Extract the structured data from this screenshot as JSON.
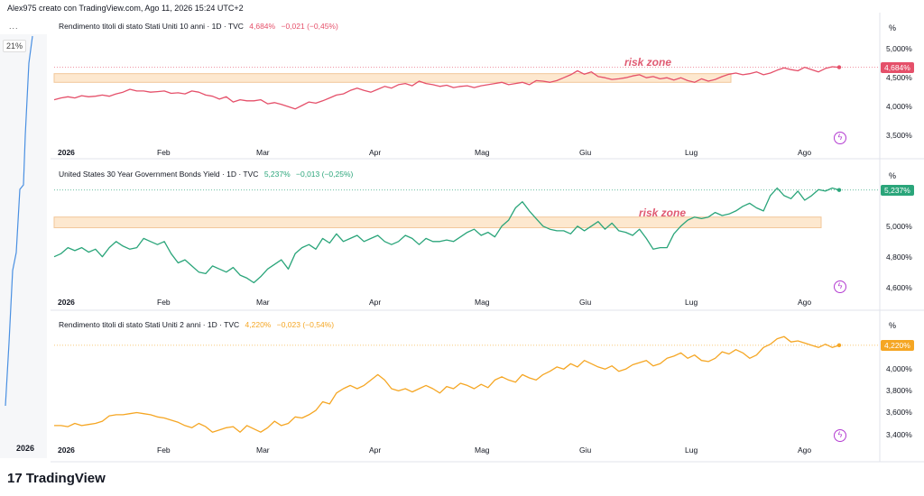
{
  "header": "Alex975 creato con TradingView.com, Ago 11, 2026 15:24 UTC+2",
  "left_strip": {
    "badge": "21%",
    "year": "2026",
    "dots": "..."
  },
  "brand": {
    "logo": "17",
    "name": "TradingView"
  },
  "colors": {
    "p1": "#e5506a",
    "p2": "#2aa57a",
    "p3": "#f5a623",
    "zone": "#fde8cf",
    "zone_border": "#f2c79a",
    "bolt": "#b33bd1"
  },
  "chart_data": [
    {
      "type": "line",
      "title": "Rendimento titoli di stato Stati Uniti 10 anni · 1D · TVC",
      "last": "4,684%",
      "change": "−0,021 (−0,45%)",
      "unit": "%",
      "ytick_labels": [
        "5,000%",
        "4,500%",
        "4,000%",
        "3,500%"
      ],
      "ytick_values": [
        5.0,
        4.5,
        4.0,
        3.5
      ],
      "ylim": [
        3.35,
        5.25
      ],
      "x_tick_labels": [
        "2026",
        "Feb",
        "Mar",
        "Apr",
        "Mag",
        "Giu",
        "Lug",
        "Ago"
      ],
      "annotation": {
        "text": "risk zone",
        "y_range": [
          4.42,
          4.57
        ]
      },
      "x": [
        0,
        2,
        4,
        6,
        8,
        10,
        12,
        14,
        16,
        18,
        20,
        22,
        24,
        26,
        28,
        30,
        32,
        34,
        36,
        38,
        40,
        42,
        44,
        46,
        48,
        50,
        52,
        54,
        56,
        58,
        60,
        62,
        64,
        66,
        68,
        70,
        72,
        74,
        76,
        78,
        80,
        82,
        84,
        86,
        88,
        90,
        92,
        94,
        96,
        98,
        100,
        102,
        104,
        106,
        108,
        110,
        112,
        114,
        116,
        118,
        120,
        122,
        124,
        126,
        128,
        130,
        132,
        134,
        136,
        138,
        140,
        142,
        144,
        146,
        148,
        150,
        152,
        154,
        156,
        158,
        160,
        162,
        164,
        166,
        168,
        170,
        172,
        174,
        176,
        178,
        180,
        182,
        184,
        186,
        188,
        190,
        192,
        194,
        196,
        198,
        200,
        202,
        204,
        206,
        208,
        210,
        212,
        214,
        216,
        218,
        220,
        222,
        224,
        226,
        228
      ],
      "values": [
        4.12,
        4.15,
        4.17,
        4.15,
        4.19,
        4.17,
        4.18,
        4.2,
        4.18,
        4.22,
        4.25,
        4.3,
        4.27,
        4.27,
        4.25,
        4.26,
        4.27,
        4.23,
        4.24,
        4.22,
        4.27,
        4.25,
        4.2,
        4.18,
        4.13,
        4.17,
        4.08,
        4.12,
        4.1,
        4.1,
        4.12,
        4.05,
        4.07,
        4.04,
        4.0,
        3.96,
        4.02,
        4.08,
        4.06,
        4.1,
        4.15,
        4.2,
        4.22,
        4.28,
        4.32,
        4.28,
        4.25,
        4.3,
        4.35,
        4.32,
        4.38,
        4.4,
        4.36,
        4.44,
        4.4,
        4.38,
        4.35,
        4.37,
        4.33,
        4.35,
        4.36,
        4.33,
        4.36,
        4.38,
        4.4,
        4.42,
        4.38,
        4.4,
        4.42,
        4.38,
        4.45,
        4.44,
        4.42,
        4.45,
        4.5,
        4.55,
        4.62,
        4.56,
        4.6,
        4.52,
        4.5,
        4.47,
        4.48,
        4.5,
        4.53,
        4.55,
        4.5,
        4.52,
        4.48,
        4.5,
        4.46,
        4.5,
        4.45,
        4.42,
        4.48,
        4.44,
        4.47,
        4.52,
        4.56,
        4.58,
        4.55,
        4.57,
        4.6,
        4.55,
        4.58,
        4.63,
        4.67,
        4.64,
        4.62,
        4.68,
        4.64,
        4.6,
        4.66,
        4.69,
        4.68
      ]
    },
    {
      "type": "line",
      "title": "United States 30 Year Government Bonds Yield · 1D · TVC",
      "last": "5,237%",
      "change": "−0,013 (−0,25%)",
      "unit": "%",
      "ytick_labels": [
        "5,000%",
        "4,800%",
        "4,600%"
      ],
      "ytick_values": [
        5.0,
        4.8,
        4.6
      ],
      "ylim": [
        4.58,
        5.3
      ],
      "x_tick_labels": [
        "2026",
        "Feb",
        "Mar",
        "Apr",
        "Mag",
        "Giu",
        "Lug",
        "Ago"
      ],
      "annotation": {
        "text": "risk zone",
        "y_range": [
          4.99,
          5.06
        ]
      },
      "x": [
        0,
        2,
        4,
        6,
        8,
        10,
        12,
        14,
        16,
        18,
        20,
        22,
        24,
        26,
        28,
        30,
        32,
        34,
        36,
        38,
        40,
        42,
        44,
        46,
        48,
        50,
        52,
        54,
        56,
        58,
        60,
        62,
        64,
        66,
        68,
        70,
        72,
        74,
        76,
        78,
        80,
        82,
        84,
        86,
        88,
        90,
        92,
        94,
        96,
        98,
        100,
        102,
        104,
        106,
        108,
        110,
        112,
        114,
        116,
        118,
        120,
        122,
        124,
        126,
        128,
        130,
        132,
        134,
        136,
        138,
        140,
        142,
        144,
        146,
        148,
        150,
        152,
        154,
        156,
        158,
        160,
        162,
        164,
        166,
        168,
        170,
        172,
        174,
        176,
        178,
        180,
        182,
        184,
        186,
        188,
        190,
        192,
        194,
        196,
        198,
        200,
        202,
        204,
        206,
        208,
        210,
        212,
        214,
        216,
        218,
        220,
        222,
        224,
        226,
        228
      ],
      "values": [
        4.8,
        4.82,
        4.86,
        4.84,
        4.86,
        4.83,
        4.85,
        4.8,
        4.86,
        4.9,
        4.87,
        4.85,
        4.86,
        4.92,
        4.9,
        4.88,
        4.9,
        4.82,
        4.76,
        4.78,
        4.74,
        4.7,
        4.69,
        4.74,
        4.72,
        4.7,
        4.73,
        4.68,
        4.66,
        4.63,
        4.67,
        4.72,
        4.75,
        4.78,
        4.72,
        4.82,
        4.86,
        4.88,
        4.85,
        4.92,
        4.89,
        4.95,
        4.9,
        4.92,
        4.94,
        4.9,
        4.92,
        4.94,
        4.9,
        4.88,
        4.9,
        4.94,
        4.92,
        4.88,
        4.92,
        4.9,
        4.9,
        4.91,
        4.9,
        4.93,
        4.96,
        4.98,
        4.94,
        4.96,
        4.93,
        5.0,
        5.04,
        5.12,
        5.16,
        5.1,
        5.05,
        5.0,
        4.98,
        4.97,
        4.97,
        4.95,
        5.0,
        4.97,
        5.0,
        5.03,
        4.98,
        5.02,
        4.97,
        4.96,
        4.94,
        4.98,
        4.92,
        4.85,
        4.86,
        4.86,
        4.95,
        5.0,
        5.04,
        5.06,
        5.05,
        5.06,
        5.09,
        5.07,
        5.08,
        5.1,
        5.13,
        5.15,
        5.12,
        5.1,
        5.2,
        5.25,
        5.2,
        5.18,
        5.23,
        5.17,
        5.2,
        5.24,
        5.23,
        5.25,
        5.237
      ]
    },
    {
      "type": "line",
      "title": "Rendimento titoli di stato Stati Uniti 2 anni · 1D · TVC",
      "last": "4,220%",
      "change": "−0,023 (−0,54%)",
      "unit": "%",
      "ytick_labels": [
        "4,000%",
        "3,800%",
        "3,600%",
        "3,400%"
      ],
      "ytick_values": [
        4.0,
        3.8,
        3.6,
        3.4
      ],
      "ylim": [
        3.33,
        4.36
      ],
      "x_tick_labels": [
        "2026",
        "Feb",
        "Mar",
        "Apr",
        "Mag",
        "Giu",
        "Lug",
        "Ago"
      ],
      "x": [
        0,
        2,
        4,
        6,
        8,
        10,
        12,
        14,
        16,
        18,
        20,
        22,
        24,
        26,
        28,
        30,
        32,
        34,
        36,
        38,
        40,
        42,
        44,
        46,
        48,
        50,
        52,
        54,
        56,
        58,
        60,
        62,
        64,
        66,
        68,
        70,
        72,
        74,
        76,
        78,
        80,
        82,
        84,
        86,
        88,
        90,
        92,
        94,
        96,
        98,
        100,
        102,
        104,
        106,
        108,
        110,
        112,
        114,
        116,
        118,
        120,
        122,
        124,
        126,
        128,
        130,
        132,
        134,
        136,
        138,
        140,
        142,
        144,
        146,
        148,
        150,
        152,
        154,
        156,
        158,
        160,
        162,
        164,
        166,
        168,
        170,
        172,
        174,
        176,
        178,
        180,
        182,
        184,
        186,
        188,
        190,
        192,
        194,
        196,
        198,
        200,
        202,
        204,
        206,
        208,
        210,
        212,
        214,
        216,
        218,
        220,
        222,
        224,
        226,
        228
      ],
      "values": [
        3.48,
        3.48,
        3.47,
        3.5,
        3.48,
        3.49,
        3.5,
        3.52,
        3.57,
        3.58,
        3.58,
        3.59,
        3.6,
        3.59,
        3.58,
        3.56,
        3.55,
        3.53,
        3.51,
        3.48,
        3.46,
        3.5,
        3.47,
        3.42,
        3.44,
        3.46,
        3.47,
        3.42,
        3.48,
        3.45,
        3.42,
        3.46,
        3.52,
        3.48,
        3.5,
        3.56,
        3.55,
        3.58,
        3.62,
        3.7,
        3.68,
        3.78,
        3.82,
        3.85,
        3.82,
        3.85,
        3.9,
        3.95,
        3.9,
        3.82,
        3.8,
        3.82,
        3.79,
        3.82,
        3.85,
        3.82,
        3.78,
        3.84,
        3.82,
        3.87,
        3.85,
        3.82,
        3.86,
        3.83,
        3.9,
        3.93,
        3.9,
        3.88,
        3.95,
        3.92,
        3.9,
        3.95,
        3.98,
        4.02,
        4.0,
        4.05,
        4.02,
        4.08,
        4.05,
        4.02,
        4.0,
        4.03,
        3.98,
        4.0,
        4.04,
        4.06,
        4.08,
        4.03,
        4.05,
        4.1,
        4.12,
        4.15,
        4.1,
        4.13,
        4.08,
        4.07,
        4.1,
        4.16,
        4.14,
        4.18,
        4.15,
        4.1,
        4.13,
        4.2,
        4.23,
        4.28,
        4.3,
        4.25,
        4.26,
        4.24,
        4.22,
        4.2,
        4.23,
        4.2,
        4.22
      ]
    }
  ]
}
